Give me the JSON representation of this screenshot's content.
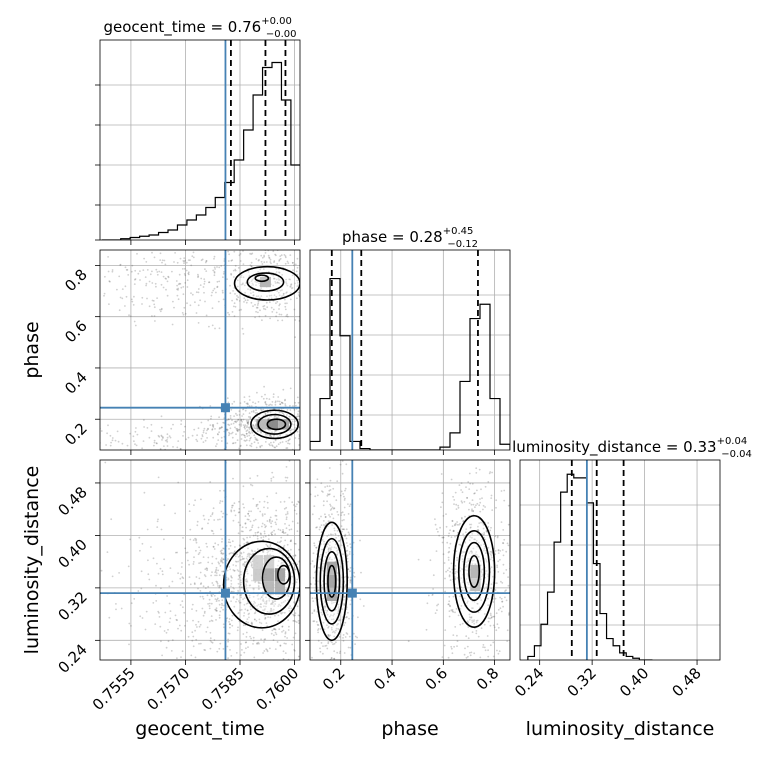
{
  "chart_data": {
    "type": "corner",
    "parameters": [
      {
        "name": "geocent_time",
        "label": "geocent_time",
        "title": "geocent_time = 0.76",
        "title_median": "0.76",
        "title_plus": "+0.00",
        "title_minus": "−0.00",
        "range": [
          0.75465,
          0.76015
        ],
        "ticks": [
          0.7555,
          0.757,
          0.7585,
          0.76
        ],
        "tick_labels": [
          "0.7555",
          "0.7570",
          "0.7585",
          "0.7600"
        ],
        "injection": 0.7581,
        "quantiles": [
          0.75825,
          0.7592,
          0.75975
        ],
        "hist": {
          "edges_start": 0.7547,
          "bin_width": 0.00026,
          "counts": [
            0,
            0,
            0.5,
            1,
            1.5,
            2,
            3,
            4,
            6,
            8,
            10,
            13,
            17,
            23,
            32,
            44,
            58,
            69,
            71,
            56,
            30,
            14
          ],
          "ymax": 80
        }
      },
      {
        "name": "phase",
        "label": "phase",
        "title": "phase = 0.28",
        "title_median": "0.28",
        "title_plus": "+0.45",
        "title_minus": "−0.12",
        "range": [
          0.08,
          0.86
        ],
        "ticks": [
          0.2,
          0.4,
          0.6,
          0.8
        ],
        "tick_labels": [
          "0.2",
          "0.4",
          "0.6",
          "0.8"
        ],
        "injection": 0.245,
        "quantiles": [
          0.165,
          0.28,
          0.735
        ],
        "hist": {
          "edges_start": 0.08,
          "bin_width": 0.039,
          "counts": [
            3,
            18,
            60,
            40,
            3,
            0.5,
            0,
            0,
            0,
            0,
            0,
            0,
            0,
            1,
            6,
            24,
            46,
            51,
            18,
            2
          ],
          "ymax": 70
        }
      },
      {
        "name": "luminosity_distance",
        "label": "luminosity_distance",
        "title": "luminosity_distance = 0.33",
        "title_median": "0.33",
        "title_plus": "+0.04",
        "title_minus": "−0.04",
        "range": [
          0.21,
          0.515
        ],
        "ticks": [
          0.24,
          0.32,
          0.4,
          0.48
        ],
        "tick_labels": [
          "0.24",
          "0.32",
          "0.40",
          "0.48"
        ],
        "injection": 0.312,
        "quantiles": [
          0.289,
          0.327,
          0.368
        ],
        "hist": {
          "edges_start": 0.222,
          "bin_width": 0.01,
          "counts": [
            1,
            4,
            10,
            19,
            33,
            47,
            52,
            51,
            51,
            44,
            27,
            13,
            6,
            4,
            2,
            1,
            0.5,
            0,
            0
          ],
          "ymax": 56
        }
      }
    ],
    "pairs": [
      {
        "x": "geocent_time",
        "y": "phase",
        "blobs": [
          {
            "cx": 0.75925,
            "cy": 0.185,
            "sx": 0.00045,
            "sy": 0.035,
            "n": 520
          },
          {
            "cx": 0.7566,
            "cy": 0.13,
            "sx": 0.0009,
            "sy": 0.02,
            "n": 160
          },
          {
            "cx": 0.7592,
            "cy": 0.73,
            "sx": 0.00055,
            "sy": 0.05,
            "n": 420
          },
          {
            "cx": 0.7563,
            "cy": 0.77,
            "sx": 0.0008,
            "sy": 0.03,
            "n": 160
          },
          {
            "cx": 0.7568,
            "cy": 0.64,
            "sx": 0.0009,
            "sy": 0.02,
            "n": 60
          }
        ],
        "contours": [
          {
            "cx": 0.75945,
            "cy": 0.18,
            "rx": 0.00065,
            "ry": 0.055
          },
          {
            "cx": 0.75945,
            "cy": 0.18,
            "rx": 0.00045,
            "ry": 0.038
          },
          {
            "cx": 0.7595,
            "cy": 0.18,
            "rx": 0.00025,
            "ry": 0.02
          },
          {
            "cx": 0.75925,
            "cy": 0.73,
            "rx": 0.0009,
            "ry": 0.065
          },
          {
            "cx": 0.7592,
            "cy": 0.735,
            "rx": 0.0005,
            "ry": 0.035
          },
          {
            "cx": 0.7591,
            "cy": 0.75,
            "rx": 0.00018,
            "ry": 0.012
          }
        ],
        "cells": [
          {
            "x": 0.7594,
            "y": 0.18,
            "w": 0.0003,
            "h": 0.04,
            "shade": 0.9
          },
          {
            "x": 0.7597,
            "y": 0.18,
            "w": 0.0003,
            "h": 0.04,
            "shade": 0.6
          },
          {
            "x": 0.7591,
            "y": 0.18,
            "w": 0.0003,
            "h": 0.04,
            "shade": 0.45
          },
          {
            "x": 0.7592,
            "y": 0.735,
            "w": 0.0003,
            "h": 0.04,
            "shade": 0.5
          }
        ]
      },
      {
        "x": "geocent_time",
        "y": "luminosity_distance",
        "blobs": [
          {
            "cx": 0.7592,
            "cy": 0.335,
            "sx": 0.0006,
            "sy": 0.04,
            "n": 1100
          },
          {
            "cx": 0.7578,
            "cy": 0.32,
            "sx": 0.0012,
            "sy": 0.05,
            "n": 380
          }
        ],
        "contours": [
          {
            "cx": 0.7591,
            "cy": 0.325,
            "rx": 0.00105,
            "ry": 0.066
          },
          {
            "cx": 0.7593,
            "cy": 0.33,
            "rx": 0.0007,
            "ry": 0.05
          },
          {
            "cx": 0.7595,
            "cy": 0.335,
            "rx": 0.00038,
            "ry": 0.032
          },
          {
            "cx": 0.7597,
            "cy": 0.34,
            "rx": 0.00016,
            "ry": 0.014
          }
        ],
        "cells": [
          {
            "x": 0.7596,
            "y": 0.34,
            "w": 0.00028,
            "h": 0.02,
            "shade": 0.95
          },
          {
            "x": 0.7593,
            "y": 0.34,
            "w": 0.00028,
            "h": 0.02,
            "shade": 0.65
          },
          {
            "x": 0.7593,
            "y": 0.32,
            "w": 0.00028,
            "h": 0.02,
            "shade": 0.55
          },
          {
            "x": 0.7596,
            "y": 0.32,
            "w": 0.00028,
            "h": 0.02,
            "shade": 0.6
          },
          {
            "x": 0.759,
            "y": 0.34,
            "w": 0.00028,
            "h": 0.02,
            "shade": 0.35
          },
          {
            "x": 0.759,
            "y": 0.36,
            "w": 0.00028,
            "h": 0.02,
            "shade": 0.3
          },
          {
            "x": 0.7593,
            "y": 0.36,
            "w": 0.00028,
            "h": 0.02,
            "shade": 0.35
          }
        ]
      },
      {
        "x": "phase",
        "y": "luminosity_distance",
        "blobs": [
          {
            "cx": 0.165,
            "cy": 0.33,
            "sx": 0.03,
            "sy": 0.045,
            "n": 650
          },
          {
            "cx": 0.725,
            "cy": 0.345,
            "sx": 0.045,
            "sy": 0.045,
            "n": 650
          }
        ],
        "contours": [
          {
            "cx": 0.165,
            "cy": 0.33,
            "rx": 0.06,
            "ry": 0.09
          },
          {
            "cx": 0.165,
            "cy": 0.33,
            "rx": 0.045,
            "ry": 0.065
          },
          {
            "cx": 0.165,
            "cy": 0.33,
            "rx": 0.03,
            "ry": 0.045
          },
          {
            "cx": 0.165,
            "cy": 0.33,
            "rx": 0.015,
            "ry": 0.024
          },
          {
            "cx": 0.72,
            "cy": 0.345,
            "rx": 0.08,
            "ry": 0.085
          },
          {
            "cx": 0.72,
            "cy": 0.345,
            "rx": 0.06,
            "ry": 0.062
          },
          {
            "cx": 0.72,
            "cy": 0.345,
            "rx": 0.04,
            "ry": 0.044
          },
          {
            "cx": 0.72,
            "cy": 0.345,
            "rx": 0.02,
            "ry": 0.024
          }
        ],
        "cells": [
          {
            "x": 0.165,
            "y": 0.33,
            "w": 0.04,
            "h": 0.02,
            "shade": 0.95
          },
          {
            "x": 0.165,
            "y": 0.35,
            "w": 0.04,
            "h": 0.02,
            "shade": 0.7
          },
          {
            "x": 0.165,
            "y": 0.31,
            "w": 0.04,
            "h": 0.02,
            "shade": 0.7
          },
          {
            "x": 0.725,
            "y": 0.345,
            "w": 0.04,
            "h": 0.02,
            "shade": 0.75
          },
          {
            "x": 0.725,
            "y": 0.325,
            "w": 0.04,
            "h": 0.02,
            "shade": 0.5
          }
        ]
      }
    ],
    "colors": {
      "injection": "#4682b4",
      "histogram": "#000000",
      "contour": "#000000",
      "grid": "#b0b0b0",
      "scatter": "#555555"
    },
    "grid": true
  }
}
